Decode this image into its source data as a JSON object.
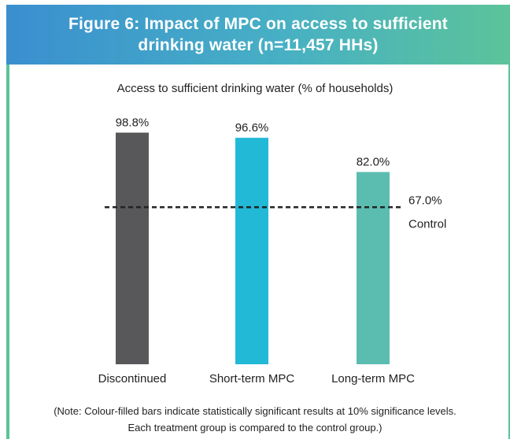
{
  "header": {
    "title": "Figure 6: Impact of MPC on access to sufficient drinking water (n=11,457 HHs)"
  },
  "colors": {
    "header_gradient_start": "#3a8fcf",
    "header_gradient_end": "#5cc39a",
    "frame": "#5cc39a"
  },
  "chart_data": {
    "type": "bar",
    "title": "Access to sufficient drinking water (% of households)",
    "categories": [
      "Discontinued",
      "Short-term MPC",
      "Long-term MPC"
    ],
    "values": [
      98.8,
      96.6,
      82.0
    ],
    "value_labels": [
      "98.8%",
      "96.6%",
      "82.0%"
    ],
    "colors": [
      "#58585a",
      "#22b9d7",
      "#5bbdb0"
    ],
    "reference_line": {
      "value": 67.0,
      "label_value": "67.0%",
      "label": "Control",
      "style": "dashed"
    },
    "ylim": [
      0,
      100
    ],
    "grid": false,
    "legend": "none"
  },
  "note": {
    "line1": "(Note: Colour-filled bars indicate statistically significant results at 10% significance levels.",
    "line2": "Each treatment group is compared to the control group.)"
  }
}
